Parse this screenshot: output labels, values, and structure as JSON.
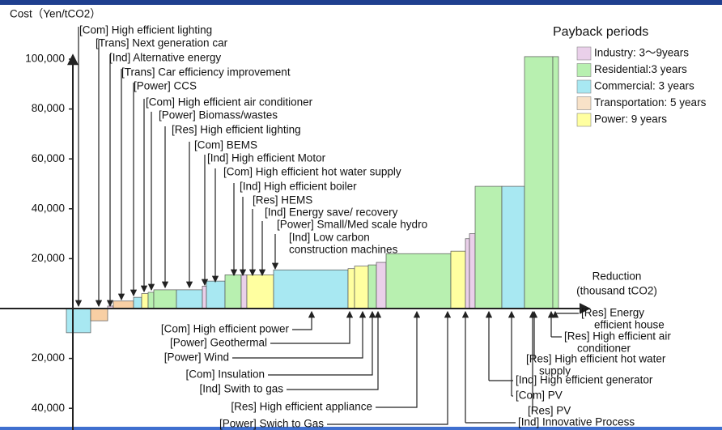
{
  "chart_data": {
    "type": "bar",
    "title": "Cost（Yen/tCO2）",
    "xlabel": [
      "Reduction",
      "(thousand tCO2)"
    ],
    "legend_title": "Payback periods",
    "legend": [
      {
        "name": "Industry: 3～9years",
        "color": "#ead0ea"
      },
      {
        "name": "Residential:3 years",
        "color": "#b8f0b0"
      },
      {
        "name": "Commercial: 3 years",
        "color": "#a8e8f2"
      },
      {
        "name": "Transportation: 5 years",
        "color": "#f8e2c8"
      },
      {
        "name": "Power: 9 years",
        "color": "#ffffa0"
      }
    ],
    "xlim": [
      0,
      640
    ],
    "ylim": [
      -48000,
      115000
    ],
    "yticks": [
      {
        "value": -40000,
        "label": "40,000"
      },
      {
        "value": -20000,
        "label": "20,000"
      },
      {
        "value": 20000,
        "label": "20,000"
      },
      {
        "value": 40000,
        "label": "40,000"
      },
      {
        "value": 60000,
        "label": "60,000"
      },
      {
        "value": 80000,
        "label": "80,000"
      },
      {
        "value": 100000,
        "label": "100,000"
      }
    ],
    "bars": [
      {
        "value": -9700,
        "width": 30,
        "color": "#a8e8f2"
      },
      {
        "value": -4900,
        "width": 21,
        "color": "#f8cfa4"
      },
      {
        "value": 1000,
        "width": 7,
        "color": "#ead0ea"
      },
      {
        "value": 3000,
        "width": 25,
        "color": "#f8cfa4"
      },
      {
        "value": 4500,
        "width": 10,
        "color": "#a8e8f2"
      },
      {
        "value": 6000,
        "width": 8,
        "color": "#ffffa0"
      },
      {
        "value": 6500,
        "width": 7,
        "color": "#b8f0b0"
      },
      {
        "value": 7500,
        "width": 28,
        "color": "#b8f0b0"
      },
      {
        "value": 7500,
        "width": 32,
        "color": "#a8e8f2"
      },
      {
        "value": 9000,
        "width": 5,
        "color": "#ead0ea"
      },
      {
        "value": 11000,
        "width": 23,
        "color": "#a8e8f2"
      },
      {
        "value": 13500,
        "width": 20,
        "color": "#b8f0b0"
      },
      {
        "value": 13500,
        "width": 7,
        "color": "#ead0ea"
      },
      {
        "value": 13500,
        "width": 33,
        "color": "#ffffa0"
      },
      {
        "value": 15500,
        "width": 92,
        "color": "#a8e8f2"
      },
      {
        "value": 16000,
        "width": 8,
        "color": "#ffffa0"
      },
      {
        "value": 17000,
        "width": 17,
        "color": "#ffffa0"
      },
      {
        "value": 17500,
        "width": 10,
        "color": "#b8f0b0"
      },
      {
        "value": 18500,
        "width": 12,
        "color": "#ead0ea"
      },
      {
        "value": 22000,
        "width": 80,
        "color": "#b8f0b0"
      },
      {
        "value": 23000,
        "width": 18,
        "color": "#ffffa0"
      },
      {
        "value": 28000,
        "width": 5,
        "color": "#ead0ea"
      },
      {
        "value": 30000,
        "width": 7,
        "color": "#ead0ea"
      },
      {
        "value": 49000,
        "width": 33,
        "color": "#b8f0b0"
      },
      {
        "value": 49000,
        "width": 28,
        "color": "#a8e8f2"
      },
      {
        "value": 101000,
        "width": 35,
        "color": "#b8f0b0"
      },
      {
        "value": 101000,
        "width": 7,
        "color": "#b8f0b0"
      }
    ],
    "annotations": [
      {
        "lines": [
          "[Com] High efficient lighting"
        ]
      },
      {
        "lines": [
          "[Trans] Next generation car"
        ]
      },
      {
        "lines": [
          "[Ind] Alternative energy"
        ]
      },
      {
        "lines": [
          "[Trans] Car efficiency improvement"
        ]
      },
      {
        "lines": [
          "[Power] CCS"
        ]
      },
      {
        "lines": [
          "[Com] High efficient air conditioner"
        ]
      },
      {
        "lines": [
          "[Power] Biomass/wastes"
        ]
      },
      {
        "lines": [
          "[Res] High efficient lighting"
        ]
      },
      {
        "lines": [
          "[Com] BEMS"
        ]
      },
      {
        "lines": [
          "[Ind] High efficient Motor"
        ]
      },
      {
        "lines": [
          "[Com] High efficient hot water supply"
        ]
      },
      {
        "lines": [
          "[Ind] High efficient boiler"
        ]
      },
      {
        "lines": [
          "[Res] HEMS"
        ]
      },
      {
        "lines": [
          "[Ind] Energy save/ recovery"
        ]
      },
      {
        "lines": [
          "[Power] Small/Med scale hydro"
        ]
      },
      {
        "lines": [
          "[Ind] Low carbon",
          "construction machines"
        ]
      },
      {
        "lines": [
          "[Com] High efficient power"
        ]
      },
      {
        "lines": [
          "[Power] Geothermal"
        ]
      },
      {
        "lines": [
          "[Power] Wind"
        ]
      },
      {
        "lines": [
          "[Com] Insulation"
        ]
      },
      {
        "lines": [
          "[Ind] Swith to gas"
        ]
      },
      {
        "lines": [
          "[Res] High efficient appliance"
        ]
      },
      {
        "lines": [
          "[Power] Swich to Gas"
        ]
      },
      {
        "lines": [
          "[Res] Energy",
          "efficient house"
        ]
      },
      {
        "lines": [
          "[Res] High efficient air",
          "conditioner"
        ]
      },
      {
        "lines": [
          "[Res] High efficient hot water",
          "supply"
        ]
      },
      {
        "lines": [
          "[Ind] High efficient generator"
        ]
      },
      {
        "lines": [
          "[Com] PV"
        ]
      },
      {
        "lines": [
          "[Res] PV"
        ]
      },
      {
        "lines": [
          "[Ind] Innovative Process"
        ]
      }
    ]
  }
}
